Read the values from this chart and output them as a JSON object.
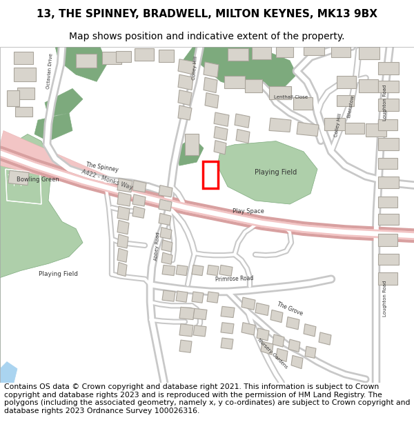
{
  "title_line1": "13, THE SPINNEY, BRADWELL, MILTON KEYNES, MK13 9BX",
  "title_line2": "Map shows position and indicative extent of the property.",
  "footer_text": "Contains OS data © Crown copyright and database right 2021. This information is subject to Crown copyright and database rights 2023 and is reproduced with the permission of HM Land Registry. The polygons (including the associated geometry, namely x, y co-ordinates) are subject to Crown copyright and database rights 2023 Ordnance Survey 100026316.",
  "title_fontsize": 11,
  "title2_fontsize": 10,
  "footer_fontsize": 7.8,
  "bg_color": "#ffffff",
  "map_bg": "#f8f8f8",
  "road_color": "#ffffff",
  "road_outline": "#c8c8c8",
  "green_dark": "#7daa7d",
  "green_light": "#aecfaa",
  "pink_color": "#f2c5c5",
  "building_color": "#d8d4cc",
  "building_outline": "#aaa59c",
  "red_outline": "#ff0000",
  "blue_color": "#aad4f0"
}
